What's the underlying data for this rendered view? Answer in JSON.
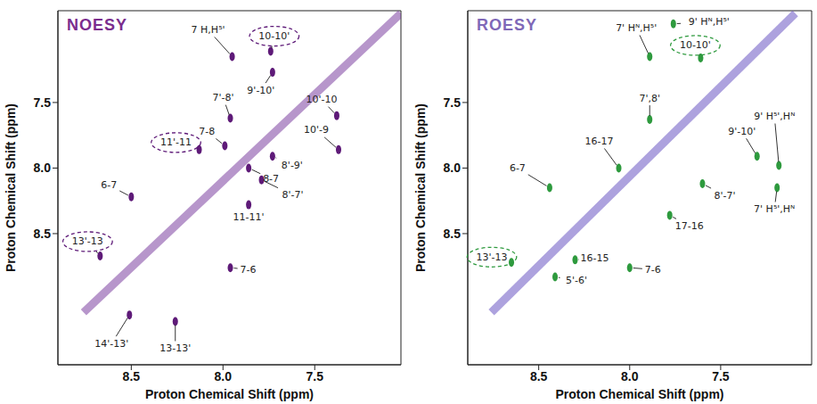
{
  "chart_data": [
    {
      "type": "scatter",
      "title": "NOESY",
      "color": "#7b2d8e",
      "xlabel": "Proton Chemical Shift (ppm)",
      "ylabel": "Proton Chemical Shift (ppm)",
      "xlim": [
        8.9,
        7.03
      ],
      "ylim": [
        9.5,
        6.8
      ],
      "xticks": [
        8.5,
        {
          "value": 8,
          "label": "8.0"
        },
        7.5
      ],
      "yticks": [
        7.5,
        {
          "value": 8,
          "label": "8.0"
        },
        8.5
      ],
      "series": [
        {
          "type": "line",
          "color": "#7b3fa0",
          "x": [
            8.76,
            7.03
          ],
          "y": [
            9.1,
            6.82
          ]
        },
        {
          "type": "scatter",
          "color": "#5e1a78",
          "marker": "ellipse",
          "points": [
            {
              "label": "7 H,H⁵'",
              "x": 7.95,
              "y": 7.15
            },
            {
              "label": "10-10'",
              "x": 7.74,
              "y": 7.11,
              "line_style": "dashed"
            },
            {
              "label": "9'-10'",
              "x": 7.73,
              "y": 7.27
            },
            {
              "label": "7'-8'",
              "x": 7.96,
              "y": 7.62
            },
            {
              "label": "7-8",
              "x": 7.99,
              "y": 7.83
            },
            {
              "label": "11'-11",
              "x": 8.13,
              "y": 7.86,
              "line_style": "dashed"
            },
            {
              "label": "10'-10",
              "x": 7.38,
              "y": 7.6
            },
            {
              "label": "10'-9",
              "x": 7.37,
              "y": 7.86
            },
            {
              "label": "8'-9'",
              "x": 7.73,
              "y": 7.91
            },
            {
              "label": "8-7",
              "x": 7.86,
              "y": 8.0
            },
            {
              "label": "8'-7'",
              "x": 7.79,
              "y": 8.09
            },
            {
              "label": "11-11'",
              "x": 7.86,
              "y": 8.28
            },
            {
              "label": "6-7",
              "x": 8.5,
              "y": 8.22
            },
            {
              "label": "13'-13",
              "x": 8.67,
              "y": 8.67,
              "line_style": "dashed"
            },
            {
              "label": "7-6",
              "x": 7.96,
              "y": 8.76
            },
            {
              "label": "14'-13'",
              "x": 8.51,
              "y": 9.12
            },
            {
              "label": "13-13'",
              "x": 8.26,
              "y": 9.17
            }
          ]
        }
      ]
    },
    {
      "type": "scatter",
      "title": "ROESY",
      "color": "#7f68b8",
      "xlabel": "Proton Chemical Shift (ppm)",
      "ylabel": "Proton Chemical Shift (ppm)",
      "xlim": [
        8.89,
        7.0
      ],
      "ylim": [
        9.5,
        6.8
      ],
      "xticks": [
        8.5,
        {
          "value": 8,
          "label": "8.0"
        },
        7.5
      ],
      "yticks": [
        7.5,
        {
          "value": 8,
          "label": "8.0"
        },
        8.5
      ],
      "series": [
        {
          "type": "line",
          "color": "#6a55c2",
          "x": [
            8.76,
            7.09
          ],
          "y": [
            9.1,
            6.82
          ]
        },
        {
          "type": "scatter",
          "color": "#2e9a3e",
          "marker": "ellipse",
          "points": [
            {
              "label": "7' Hᴺ,H⁵'",
              "x": 7.89,
              "y": 7.15
            },
            {
              "label": "9' Hᴺ,H⁵'",
              "x": 7.76,
              "y": 6.9
            },
            {
              "label": "10-10'",
              "x": 7.61,
              "y": 7.16,
              "line_style": "dashed"
            },
            {
              "label": "7',8'",
              "x": 7.89,
              "y": 7.63
            },
            {
              "label": "16-17",
              "x": 8.06,
              "y": 8.0
            },
            {
              "label": "9'-10'",
              "x": 7.3,
              "y": 7.91
            },
            {
              "label": "9' H⁵',Hᴺ",
              "x": 7.18,
              "y": 7.98
            },
            {
              "label": "6-7",
              "x": 8.44,
              "y": 8.15
            },
            {
              "label": "8'-7'",
              "x": 7.6,
              "y": 8.12
            },
            {
              "label": "7' H⁵',Hᴺ",
              "x": 7.19,
              "y": 8.15
            },
            {
              "label": "17-16",
              "x": 7.78,
              "y": 8.36
            },
            {
              "label": "13'-13",
              "x": 8.65,
              "y": 8.72,
              "line_style": "dashed"
            },
            {
              "label": "16-15",
              "x": 8.3,
              "y": 8.7
            },
            {
              "label": "5'-6'",
              "x": 8.41,
              "y": 8.83
            },
            {
              "label": "7-6",
              "x": 8.0,
              "y": 8.76
            }
          ]
        }
      ]
    }
  ]
}
